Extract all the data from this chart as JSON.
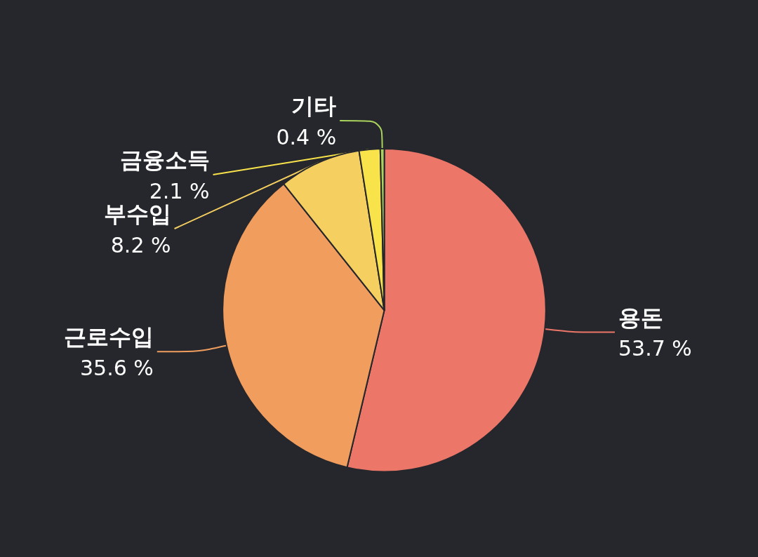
{
  "chart_data": {
    "type": "pie",
    "categories": [
      "용돈",
      "근로수입",
      "부수입",
      "금융소득",
      "기타"
    ],
    "values": [
      53.7,
      35.6,
      8.2,
      2.1,
      0.4
    ],
    "value_labels": [
      "53.7 %",
      "35.6 %",
      "8.2 %",
      "2.1 %",
      "0.4 %"
    ],
    "colors": [
      "#ec7769",
      "#f09d5e",
      "#f5cf60",
      "#f8e34a",
      "#a9d35c"
    ],
    "legend": false
  }
}
